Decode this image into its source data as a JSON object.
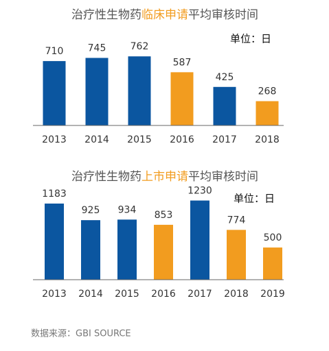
{
  "chart_data": [
    {
      "type": "bar",
      "title": [
        {
          "text": "治疗性生物药",
          "color": "#555555"
        },
        {
          "text": "临床申请",
          "color": "#f29c1f"
        },
        {
          "text": "平均审核时间",
          "color": "#555555"
        }
      ],
      "unit": "单位：日",
      "categories": [
        "2013",
        "2014",
        "2015",
        "2016",
        "2017",
        "2018"
      ],
      "values": [
        710,
        745,
        762,
        587,
        425,
        268
      ],
      "colors": [
        "#0b56a0",
        "#0b56a0",
        "#0b56a0",
        "#f29c1f",
        "#0b56a0",
        "#f29c1f"
      ],
      "ylim": [
        0,
        930
      ]
    },
    {
      "type": "bar",
      "title": [
        {
          "text": "治疗性生物药",
          "color": "#555555"
        },
        {
          "text": "上市申请",
          "color": "#f29c1f"
        },
        {
          "text": "平均审核时间",
          "color": "#555555"
        }
      ],
      "unit": "单位：日",
      "categories": [
        "2013",
        "2014",
        "2015",
        "2016",
        "2017",
        "2018",
        "2019"
      ],
      "values": [
        1183,
        925,
        934,
        853,
        1230,
        774,
        500
      ],
      "colors": [
        "#0b56a0",
        "#0b56a0",
        "#0b56a0",
        "#f29c1f",
        "#0b56a0",
        "#f29c1f",
        "#f29c1f"
      ],
      "ylim": [
        0,
        1310
      ]
    }
  ],
  "source": "数据来源：GBI SOURCE"
}
